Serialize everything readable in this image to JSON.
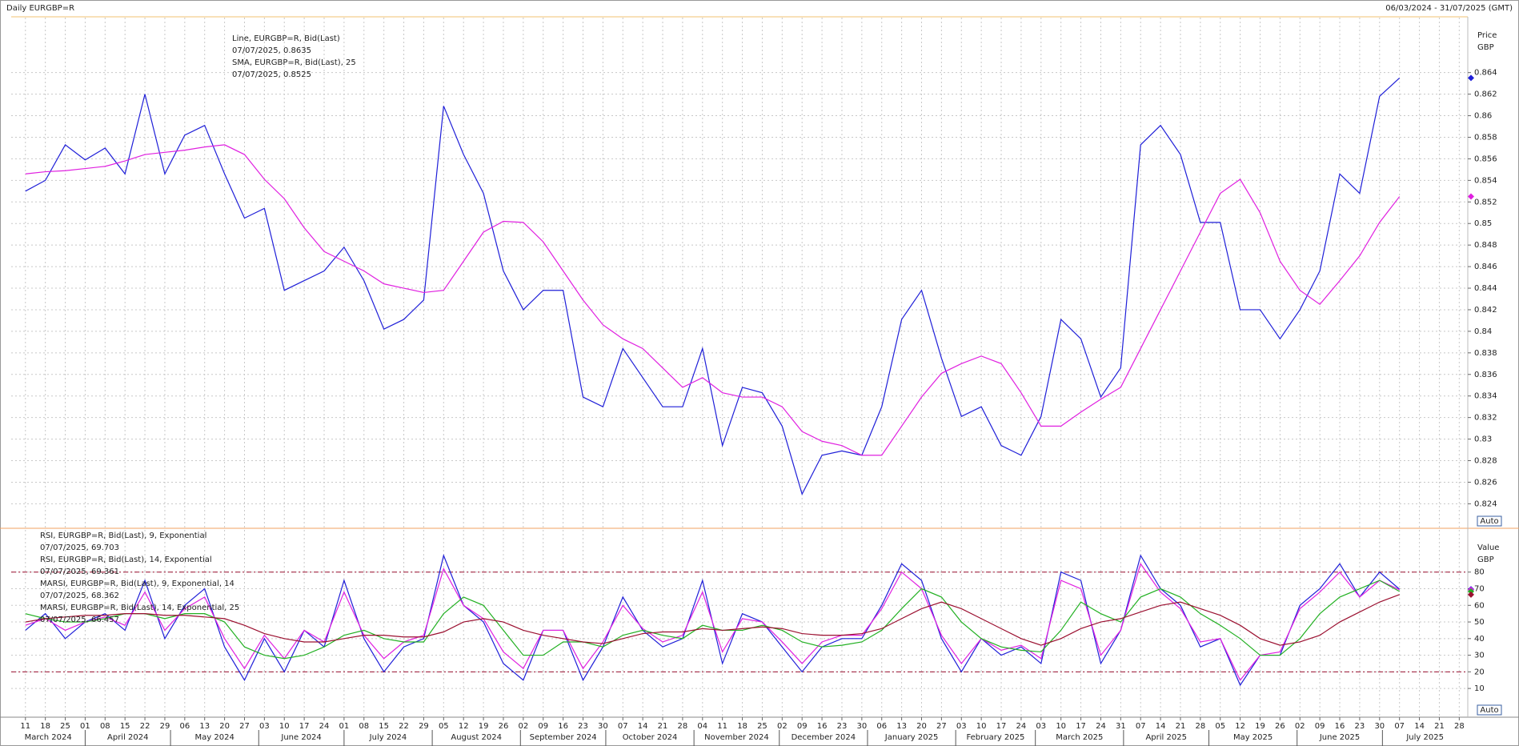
{
  "chart_data": {
    "type": "line",
    "title": "Daily EURGBP=R",
    "date_range": "06/03/2024 - 31/07/2025 (GMT)",
    "xlim": [
      "2024-03-06",
      "2025-07-31"
    ],
    "x": [
      "2024-03-11",
      "2024-03-18",
      "2024-03-25",
      "2024-04-01",
      "2024-04-08",
      "2024-04-15",
      "2024-04-22",
      "2024-04-29",
      "2024-05-06",
      "2024-05-13",
      "2024-05-20",
      "2024-05-27",
      "2024-06-03",
      "2024-06-10",
      "2024-06-17",
      "2024-06-24",
      "2024-07-01",
      "2024-07-08",
      "2024-07-15",
      "2024-07-22",
      "2024-07-29",
      "2024-08-05",
      "2024-08-12",
      "2024-08-19",
      "2024-08-26",
      "2024-09-02",
      "2024-09-09",
      "2024-09-16",
      "2024-09-23",
      "2024-09-30",
      "2024-10-07",
      "2024-10-14",
      "2024-10-21",
      "2024-10-28",
      "2024-11-04",
      "2024-11-11",
      "2024-11-18",
      "2024-11-25",
      "2024-12-02",
      "2024-12-09",
      "2024-12-16",
      "2024-12-23",
      "2024-12-30",
      "2025-01-06",
      "2025-01-13",
      "2025-01-20",
      "2025-01-27",
      "2025-02-03",
      "2025-02-10",
      "2025-02-17",
      "2025-02-24",
      "2025-03-03",
      "2025-03-10",
      "2025-03-17",
      "2025-03-24",
      "2025-03-31",
      "2025-04-07",
      "2025-04-14",
      "2025-04-21",
      "2025-04-28",
      "2025-05-05",
      "2025-05-12",
      "2025-05-19",
      "2025-05-26",
      "2025-06-02",
      "2025-06-09",
      "2025-06-16",
      "2025-06-23",
      "2025-06-30",
      "2025-07-07"
    ],
    "xticks": [
      {
        "value": "2024-03-11",
        "label": "11"
      },
      {
        "value": "2024-03-18",
        "label": "18"
      },
      {
        "value": "2024-03-25",
        "label": "25"
      },
      {
        "value": "2024-04-01",
        "label": "01"
      },
      {
        "value": "2024-04-08",
        "label": "08"
      },
      {
        "value": "2024-04-15",
        "label": "15"
      },
      {
        "value": "2024-04-22",
        "label": "22"
      },
      {
        "value": "2024-04-29",
        "label": "29"
      },
      {
        "value": "2024-05-06",
        "label": "06"
      },
      {
        "value": "2024-05-13",
        "label": "13"
      },
      {
        "value": "2024-05-20",
        "label": "20"
      },
      {
        "value": "2024-05-27",
        "label": "27"
      },
      {
        "value": "2024-06-03",
        "label": "03"
      },
      {
        "value": "2024-06-10",
        "label": "10"
      },
      {
        "value": "2024-06-17",
        "label": "17"
      },
      {
        "value": "2024-06-24",
        "label": "24"
      },
      {
        "value": "2024-07-01",
        "label": "01"
      },
      {
        "value": "2024-07-08",
        "label": "08"
      },
      {
        "value": "2024-07-15",
        "label": "15"
      },
      {
        "value": "2024-07-22",
        "label": "22"
      },
      {
        "value": "2024-07-29",
        "label": "29"
      },
      {
        "value": "2024-08-05",
        "label": "05"
      },
      {
        "value": "2024-08-12",
        "label": "12"
      },
      {
        "value": "2024-08-19",
        "label": "19"
      },
      {
        "value": "2024-08-26",
        "label": "26"
      },
      {
        "value": "2024-09-02",
        "label": "02"
      },
      {
        "value": "2024-09-09",
        "label": "09"
      },
      {
        "value": "2024-09-16",
        "label": "16"
      },
      {
        "value": "2024-09-23",
        "label": "23"
      },
      {
        "value": "2024-09-30",
        "label": "30"
      },
      {
        "value": "2024-10-07",
        "label": "07"
      },
      {
        "value": "2024-10-14",
        "label": "14"
      },
      {
        "value": "2024-10-21",
        "label": "21"
      },
      {
        "value": "2024-10-28",
        "label": "28"
      },
      {
        "value": "2024-11-04",
        "label": "04"
      },
      {
        "value": "2024-11-11",
        "label": "11"
      },
      {
        "value": "2024-11-18",
        "label": "18"
      },
      {
        "value": "2024-11-25",
        "label": "25"
      },
      {
        "value": "2024-12-02",
        "label": "02"
      },
      {
        "value": "2024-12-09",
        "label": "09"
      },
      {
        "value": "2024-12-16",
        "label": "16"
      },
      {
        "value": "2024-12-23",
        "label": "23"
      },
      {
        "value": "2024-12-30",
        "label": "30"
      },
      {
        "value": "2025-01-06",
        "label": "06"
      },
      {
        "value": "2025-01-13",
        "label": "13"
      },
      {
        "value": "2025-01-20",
        "label": "20"
      },
      {
        "value": "2025-01-27",
        "label": "27"
      },
      {
        "value": "2025-02-03",
        "label": "03"
      },
      {
        "value": "2025-02-10",
        "label": "10"
      },
      {
        "value": "2025-02-17",
        "label": "17"
      },
      {
        "value": "2025-02-24",
        "label": "24"
      },
      {
        "value": "2025-03-03",
        "label": "03"
      },
      {
        "value": "2025-03-10",
        "label": "10"
      },
      {
        "value": "2025-03-17",
        "label": "17"
      },
      {
        "value": "2025-03-24",
        "label": "24"
      },
      {
        "value": "2025-03-31",
        "label": "31"
      },
      {
        "value": "2025-04-07",
        "label": "07"
      },
      {
        "value": "2025-04-14",
        "label": "14"
      },
      {
        "value": "2025-04-21",
        "label": "21"
      },
      {
        "value": "2025-04-28",
        "label": "28"
      },
      {
        "value": "2025-05-05",
        "label": "05"
      },
      {
        "value": "2025-05-12",
        "label": "12"
      },
      {
        "value": "2025-05-19",
        "label": "19"
      },
      {
        "value": "2025-05-26",
        "label": "26"
      },
      {
        "value": "2025-06-02",
        "label": "02"
      },
      {
        "value": "2025-06-09",
        "label": "09"
      },
      {
        "value": "2025-06-16",
        "label": "16"
      },
      {
        "value": "2025-06-23",
        "label": "23"
      },
      {
        "value": "2025-06-30",
        "label": "30"
      },
      {
        "value": "2025-07-07",
        "label": "07"
      },
      {
        "value": "2025-07-14",
        "label": "14"
      },
      {
        "value": "2025-07-21",
        "label": "21"
      },
      {
        "value": "2025-07-28",
        "label": "28"
      }
    ],
    "month_labels": [
      {
        "value": "2024-03",
        "label": "March 2024"
      },
      {
        "value": "2024-04",
        "label": "April 2024"
      },
      {
        "value": "2024-05",
        "label": "May 2024"
      },
      {
        "value": "2024-06",
        "label": "June 2024"
      },
      {
        "value": "2024-07",
        "label": "July 2024"
      },
      {
        "value": "2024-08",
        "label": "August 2024"
      },
      {
        "value": "2024-09",
        "label": "September 2024"
      },
      {
        "value": "2024-10",
        "label": "October 2024"
      },
      {
        "value": "2024-11",
        "label": "November 2024"
      },
      {
        "value": "2024-12",
        "label": "December 2024"
      },
      {
        "value": "2025-01",
        "label": "January 2025"
      },
      {
        "value": "2025-02",
        "label": "February 2025"
      },
      {
        "value": "2025-03",
        "label": "March 2025"
      },
      {
        "value": "2025-04",
        "label": "April 2025"
      },
      {
        "value": "2025-05",
        "label": "May 2025"
      },
      {
        "value": "2025-06",
        "label": "June 2025"
      },
      {
        "value": "2025-07",
        "label": "July 2025"
      }
    ],
    "grid": true,
    "panels": [
      {
        "y_label": "Price",
        "y_unit": "GBP",
        "scale_button": "Auto",
        "ylim": [
          0.8218,
          0.8691
        ],
        "yticks": [
          0.824,
          0.826,
          0.828,
          0.83,
          0.832,
          0.834,
          0.836,
          0.838,
          0.84,
          0.842,
          0.844,
          0.846,
          0.848,
          0.85,
          0.852,
          0.854,
          0.856,
          0.858,
          0.86,
          0.862,
          0.864
        ],
        "series": [
          {
            "name": "Line, EURGBP=R, Bid(Last)",
            "value_label": "07/07/2025, 0.8635",
            "color": "#1f1fd8",
            "values": [
              0.853,
              0.854,
              0.8573,
              0.8559,
              0.857,
              0.8546,
              0.862,
              0.8546,
              0.8582,
              0.8591,
              0.8546,
              0.8505,
              0.8514,
              0.8438,
              0.8447,
              0.8456,
              0.8478,
              0.8447,
              0.8402,
              0.8411,
              0.8429,
              0.8609,
              0.8564,
              0.8528,
              0.8456,
              0.842,
              0.8438,
              0.8438,
              0.8339,
              0.833,
              0.8384,
              0.8357,
              0.833,
              0.833,
              0.8384,
              0.8294,
              0.8348,
              0.8343,
              0.8312,
              0.8249,
              0.8285,
              0.8289,
              0.8285,
              0.833,
              0.8411,
              0.8438,
              0.8375,
              0.8321,
              0.833,
              0.8294,
              0.8285,
              0.8321,
              0.8411,
              0.8393,
              0.8339,
              0.8366,
              0.8573,
              0.8591,
              0.8564,
              0.8501,
              0.8501,
              0.842,
              0.842,
              0.8393,
              0.842,
              0.8456,
              0.8546,
              0.8528,
              0.8618,
              0.8635
            ]
          },
          {
            "name": "SMA, EURGBP=R, Bid(Last),  25",
            "value_label": "07/07/2025, 0.8525",
            "color": "#e020e0",
            "values": [
              0.8546,
              0.8548,
              0.8549,
              0.8551,
              0.8553,
              0.8558,
              0.8564,
              0.8566,
              0.8568,
              0.8571,
              0.8573,
              0.8564,
              0.8541,
              0.8523,
              0.8496,
              0.8474,
              0.8465,
              0.8456,
              0.8444,
              0.844,
              0.8436,
              0.8438,
              0.8465,
              0.8492,
              0.8502,
              0.8501,
              0.8483,
              0.8456,
              0.8429,
              0.8406,
              0.8393,
              0.8384,
              0.8366,
              0.8348,
              0.8357,
              0.8343,
              0.8339,
              0.8339,
              0.833,
              0.8307,
              0.8298,
              0.8294,
              0.8285,
              0.8285,
              0.8312,
              0.8339,
              0.8361,
              0.837,
              0.8377,
              0.837,
              0.8343,
              0.8312,
              0.8312,
              0.8325,
              0.8337,
              0.8348,
              0.8384,
              0.842,
              0.8456,
              0.8492,
              0.8528,
              0.8541,
              0.851,
              0.8465,
              0.8438,
              0.8425,
              0.8447,
              0.847,
              0.8501,
              0.8525
            ]
          }
        ]
      },
      {
        "y_label": "Value",
        "y_unit": "GBP",
        "scale_button": "Auto",
        "ylim": [
          -6.8,
          105.4
        ],
        "yticks": [
          10,
          20,
          30,
          40,
          50,
          60,
          70,
          80
        ],
        "hlines": [
          80,
          20
        ],
        "hline_color": "#9b1030",
        "series": [
          {
            "name": "RSI, EURGBP=R, Bid(Last),  9, Exponential",
            "value_label": "07/07/2025, 69.703",
            "color": "#1f1fd8",
            "values": [
              45,
              55,
              40,
              50,
              55,
              45,
              75,
              40,
              60,
              70,
              35,
              15,
              40,
              20,
              45,
              35,
              75,
              40,
              20,
              35,
              40,
              90,
              60,
              50,
              25,
              15,
              45,
              45,
              15,
              35,
              65,
              45,
              35,
              40,
              75,
              25,
              55,
              50,
              35,
              20,
              35,
              40,
              40,
              60,
              85,
              75,
              40,
              20,
              40,
              30,
              35,
              25,
              80,
              75,
              25,
              45,
              90,
              70,
              60,
              35,
              40,
              12,
              30,
              30,
              60,
              70,
              85,
              65,
              80,
              69.703
            ]
          },
          {
            "name": "RSI, EURGBP=R, Bid(Last),  14, Exponential",
            "value_label": "07/07/2025, 69.361",
            "color": "#e020e0",
            "values": [
              48,
              52,
              45,
              50,
              53,
              48,
              68,
              45,
              58,
              65,
              40,
              22,
              42,
              28,
              45,
              38,
              68,
              42,
              28,
              38,
              42,
              82,
              60,
              52,
              32,
              22,
              45,
              45,
              22,
              38,
              60,
              46,
              38,
              42,
              68,
              32,
              52,
              50,
              38,
              25,
              38,
              42,
              42,
              58,
              80,
              70,
              42,
              25,
              40,
              33,
              36,
              28,
              75,
              70,
              30,
              45,
              85,
              68,
              58,
              38,
              40,
              15,
              30,
              32,
              58,
              68,
              80,
              65,
              75,
              69.361
            ]
          },
          {
            "name": "MARSI, EURGBP=R, Bid(Last),  9, Exponential, 14",
            "value_label": "07/07/2025, 68.362",
            "color": "#22b022",
            "values": [
              55,
              52,
              50,
              50,
              52,
              55,
              55,
              52,
              55,
              55,
              50,
              35,
              30,
              28,
              30,
              35,
              42,
              45,
              40,
              38,
              38,
              55,
              65,
              60,
              45,
              30,
              30,
              38,
              38,
              35,
              42,
              45,
              42,
              40,
              48,
              45,
              45,
              48,
              45,
              38,
              35,
              36,
              38,
              45,
              58,
              70,
              65,
              50,
              40,
              35,
              33,
              32,
              45,
              62,
              55,
              50,
              65,
              70,
              65,
              55,
              48,
              40,
              30,
              30,
              40,
              55,
              65,
              70,
              75,
              68.362
            ]
          },
          {
            "name": "MARSI, EURGBP=R, Bid(Last),  14, Exponential, 25",
            "value_label": "07/07/2025, 66.457",
            "color": "#9b1030",
            "values": [
              50,
              52,
              53,
              54,
              54,
              55,
              55,
              54,
              54,
              53,
              52,
              48,
              43,
              40,
              38,
              38,
              40,
              42,
              42,
              41,
              41,
              44,
              50,
              52,
              50,
              45,
              42,
              40,
              38,
              37,
              40,
              43,
              44,
              44,
              46,
              45,
              46,
              47,
              46,
              43,
              42,
              42,
              43,
              46,
              52,
              58,
              62,
              58,
              52,
              46,
              40,
              36,
              40,
              46,
              50,
              52,
              56,
              60,
              62,
              58,
              54,
              48,
              40,
              36,
              38,
              42,
              50,
              56,
              62,
              66.457
            ]
          }
        ]
      }
    ]
  }
}
